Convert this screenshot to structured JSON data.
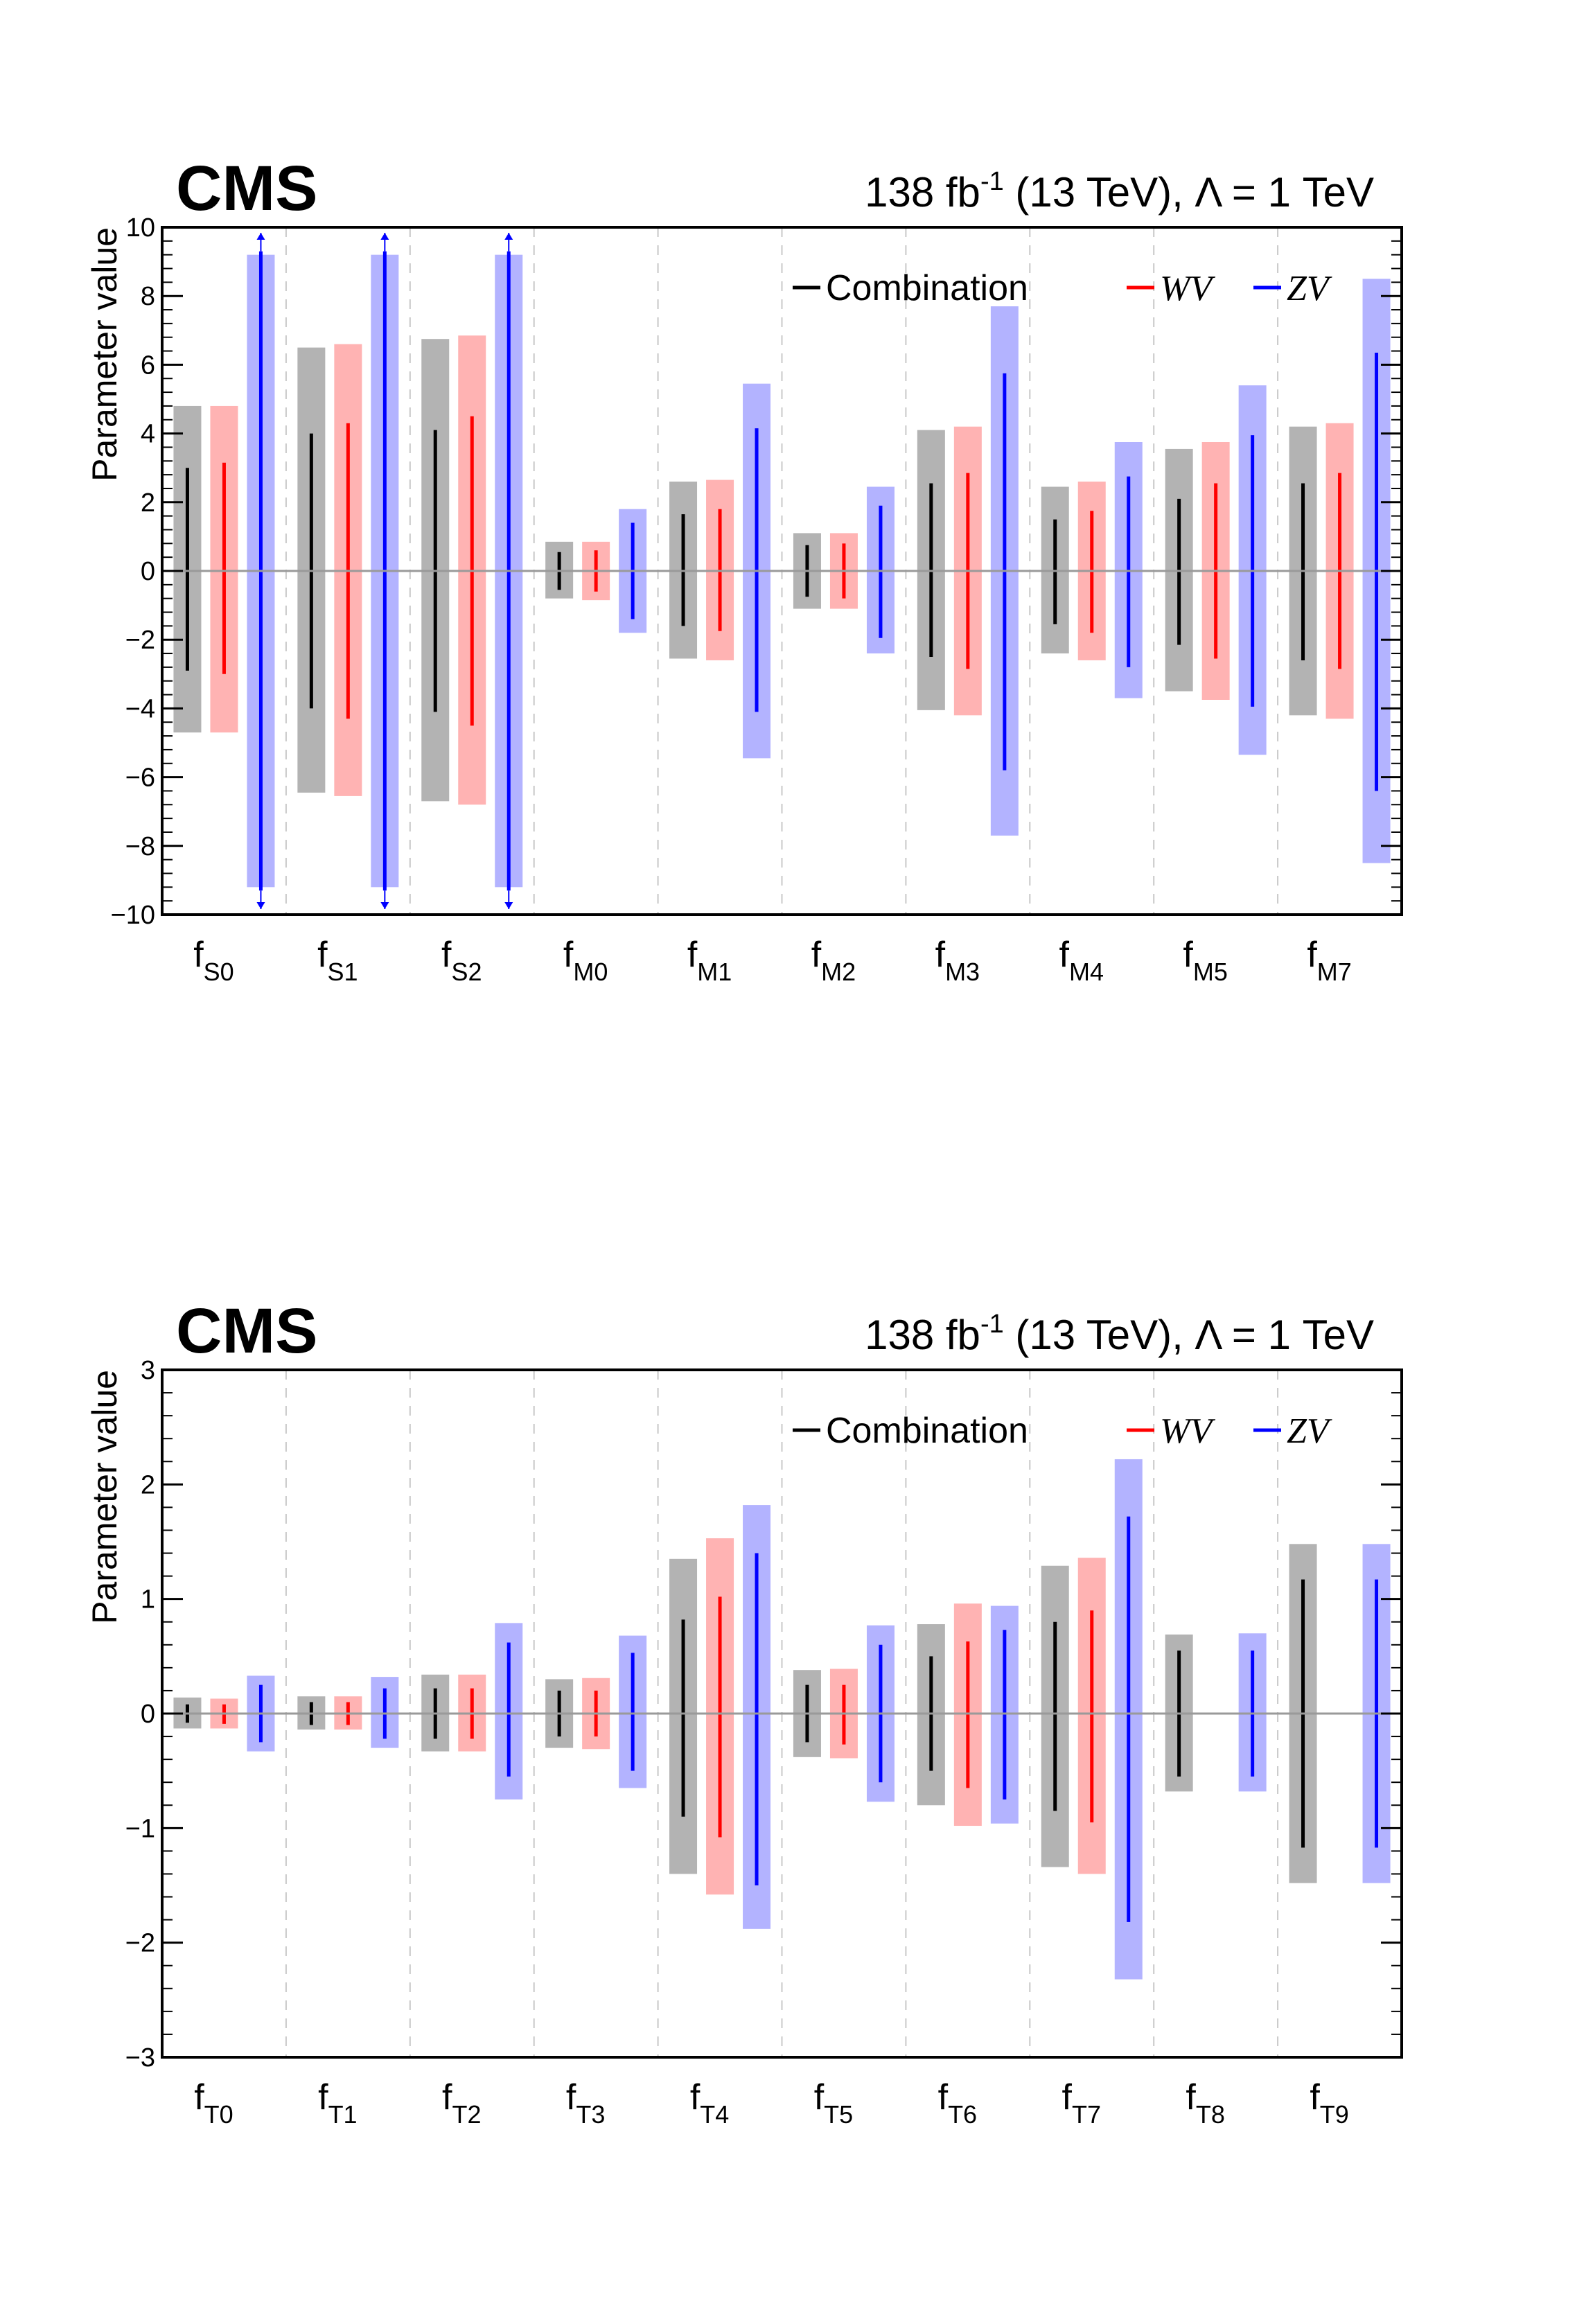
{
  "chart_data": [
    {
      "type": "interval",
      "experiment": "CMS",
      "lumi_label": "138 fb",
      "lumi_sup": "-1",
      "energy_label": " (13 TeV), Λ = 1 TeV",
      "ylabel": "Parameter value",
      "ylim": [
        -10,
        10
      ],
      "ytick_step": 2,
      "yticks": [
        "−10",
        "−8",
        "−6",
        "−4",
        "−2",
        "0",
        "2",
        "4",
        "6",
        "8",
        "10"
      ],
      "legend": [
        {
          "label": "Combination",
          "color": "#000000",
          "italic": false
        },
        {
          "label": "WV",
          "color": "#ff0000",
          "italic": true
        },
        {
          "label": "ZV",
          "color": "#0000ff",
          "italic": true
        }
      ],
      "categories": [
        {
          "base": "f",
          "sub": "S0"
        },
        {
          "base": "f",
          "sub": "S1"
        },
        {
          "base": "f",
          "sub": "S2"
        },
        {
          "base": "f",
          "sub": "M0"
        },
        {
          "base": "f",
          "sub": "M1"
        },
        {
          "base": "f",
          "sub": "M2"
        },
        {
          "base": "f",
          "sub": "M3"
        },
        {
          "base": "f",
          "sub": "M4"
        },
        {
          "base": "f",
          "sub": "M5"
        },
        {
          "base": "f",
          "sub": "M7"
        }
      ],
      "series": [
        {
          "name": "Combination",
          "line_color": "#000000",
          "band_color": "#b3b3b3",
          "expected": [
            [
              -2.9,
              3.0
            ],
            [
              -4.0,
              4.0
            ],
            [
              -4.1,
              4.1
            ],
            [
              -0.55,
              0.55
            ],
            [
              -1.6,
              1.65
            ],
            [
              -0.75,
              0.75
            ],
            [
              -2.5,
              2.55
            ],
            [
              -1.55,
              1.5
            ],
            [
              -2.15,
              2.1
            ],
            [
              -2.6,
              2.55
            ]
          ],
          "band": [
            [
              -4.7,
              4.8
            ],
            [
              -6.45,
              6.5
            ],
            [
              -6.7,
              6.75
            ],
            [
              -0.8,
              0.85
            ],
            [
              -2.55,
              2.6
            ],
            [
              -1.1,
              1.1
            ],
            [
              -4.05,
              4.1
            ],
            [
              -2.4,
              2.45
            ],
            [
              -3.5,
              3.55
            ],
            [
              -4.2,
              4.2
            ]
          ]
        },
        {
          "name": "WV",
          "line_color": "#ff0000",
          "band_color": "#ffb3b3",
          "expected": [
            [
              -3.0,
              3.15
            ],
            [
              -4.3,
              4.3
            ],
            [
              -4.5,
              4.5
            ],
            [
              -0.6,
              0.6
            ],
            [
              -1.75,
              1.8
            ],
            [
              -0.8,
              0.8
            ],
            [
              -2.85,
              2.85
            ],
            [
              -1.8,
              1.75
            ],
            [
              -2.55,
              2.55
            ],
            [
              -2.85,
              2.85
            ]
          ],
          "band": [
            [
              -4.7,
              4.8
            ],
            [
              -6.55,
              6.6
            ],
            [
              -6.8,
              6.85
            ],
            [
              -0.85,
              0.85
            ],
            [
              -2.6,
              2.65
            ],
            [
              -1.1,
              1.1
            ],
            [
              -4.2,
              4.2
            ],
            [
              -2.6,
              2.6
            ],
            [
              -3.75,
              3.75
            ],
            [
              -4.3,
              4.3
            ]
          ]
        },
        {
          "name": "ZV",
          "line_color": "#0000ff",
          "band_color": "#b3b3ff",
          "expected": [
            [
              -9.3,
              9.3
            ],
            [
              -9.3,
              9.3
            ],
            [
              -9.3,
              9.3
            ],
            [
              -1.4,
              1.4
            ],
            [
              -4.1,
              4.15
            ],
            [
              -1.95,
              1.9
            ],
            [
              -5.8,
              5.75
            ],
            [
              -2.8,
              2.75
            ],
            [
              -3.95,
              3.95
            ],
            [
              -6.4,
              6.35
            ]
          ],
          "band": [
            [
              -9.2,
              9.2
            ],
            [
              -9.2,
              9.2
            ],
            [
              -9.2,
              9.2
            ],
            [
              -1.8,
              1.8
            ],
            [
              -5.45,
              5.45
            ],
            [
              -2.4,
              2.45
            ],
            [
              -7.7,
              7.7
            ],
            [
              -3.7,
              3.75
            ],
            [
              -5.35,
              5.4
            ],
            [
              -8.5,
              8.5
            ]
          ],
          "overflow": [
            true,
            true,
            true,
            false,
            false,
            false,
            false,
            false,
            false,
            false
          ]
        }
      ]
    },
    {
      "type": "interval",
      "experiment": "CMS",
      "lumi_label": "138 fb",
      "lumi_sup": "-1",
      "energy_label": " (13 TeV), Λ = 1 TeV",
      "ylabel": "Parameter value",
      "ylim": [
        -3,
        3
      ],
      "ytick_step": 1,
      "yticks": [
        "−3",
        "−2",
        "−1",
        "0",
        "1",
        "2",
        "3"
      ],
      "legend": [
        {
          "label": "Combination",
          "color": "#000000",
          "italic": false
        },
        {
          "label": "WV",
          "color": "#ff0000",
          "italic": true
        },
        {
          "label": "ZV",
          "color": "#0000ff",
          "italic": true
        }
      ],
      "categories": [
        {
          "base": "f",
          "sub": "T0"
        },
        {
          "base": "f",
          "sub": "T1"
        },
        {
          "base": "f",
          "sub": "T2"
        },
        {
          "base": "f",
          "sub": "T3"
        },
        {
          "base": "f",
          "sub": "T4"
        },
        {
          "base": "f",
          "sub": "T5"
        },
        {
          "base": "f",
          "sub": "T6"
        },
        {
          "base": "f",
          "sub": "T7"
        },
        {
          "base": "f",
          "sub": "T8"
        },
        {
          "base": "f",
          "sub": "T9"
        }
      ],
      "series": [
        {
          "name": "Combination",
          "line_color": "#000000",
          "band_color": "#b3b3b3",
          "expected": [
            [
              -0.08,
              0.08
            ],
            [
              -0.1,
              0.1
            ],
            [
              -0.22,
              0.22
            ],
            [
              -0.2,
              0.2
            ],
            [
              -0.9,
              0.82
            ],
            [
              -0.25,
              0.25
            ],
            [
              -0.5,
              0.5
            ],
            [
              -0.85,
              0.8
            ],
            [
              -0.55,
              0.55
            ],
            [
              -1.17,
              1.17
            ]
          ],
          "band": [
            [
              -0.13,
              0.14
            ],
            [
              -0.14,
              0.15
            ],
            [
              -0.33,
              0.34
            ],
            [
              -0.3,
              0.3
            ],
            [
              -1.4,
              1.35
            ],
            [
              -0.38,
              0.38
            ],
            [
              -0.8,
              0.78
            ],
            [
              -1.34,
              1.29
            ],
            [
              -0.68,
              0.69
            ],
            [
              -1.48,
              1.48
            ]
          ]
        },
        {
          "name": "WV",
          "line_color": "#ff0000",
          "band_color": "#ffb3b3",
          "expected": [
            [
              -0.09,
              0.08
            ],
            [
              -0.1,
              0.1
            ],
            [
              -0.22,
              0.22
            ],
            [
              -0.2,
              0.2
            ],
            [
              -1.08,
              1.02
            ],
            [
              -0.27,
              0.25
            ],
            [
              -0.65,
              0.63
            ],
            [
              -0.95,
              0.9
            ],
            null,
            null
          ],
          "band": [
            [
              -0.13,
              0.13
            ],
            [
              -0.14,
              0.15
            ],
            [
              -0.33,
              0.34
            ],
            [
              -0.31,
              0.31
            ],
            [
              -1.58,
              1.53
            ],
            [
              -0.39,
              0.39
            ],
            [
              -0.98,
              0.96
            ],
            [
              -1.4,
              1.36
            ],
            null,
            null
          ]
        },
        {
          "name": "ZV",
          "line_color": "#0000ff",
          "band_color": "#b3b3ff",
          "expected": [
            [
              -0.25,
              0.25
            ],
            [
              -0.22,
              0.22
            ],
            [
              -0.55,
              0.62
            ],
            [
              -0.5,
              0.53
            ],
            [
              -1.5,
              1.4
            ],
            [
              -0.6,
              0.6
            ],
            [
              -0.75,
              0.73
            ],
            [
              -1.82,
              1.72
            ],
            [
              -0.55,
              0.55
            ],
            [
              -1.17,
              1.17
            ]
          ],
          "band": [
            [
              -0.33,
              0.33
            ],
            [
              -0.3,
              0.32
            ],
            [
              -0.75,
              0.79
            ],
            [
              -0.65,
              0.68
            ],
            [
              -1.88,
              1.82
            ],
            [
              -0.77,
              0.77
            ],
            [
              -0.96,
              0.94
            ],
            [
              -2.32,
              2.22
            ],
            [
              -0.68,
              0.7
            ],
            [
              -1.48,
              1.48
            ]
          ]
        }
      ]
    }
  ]
}
